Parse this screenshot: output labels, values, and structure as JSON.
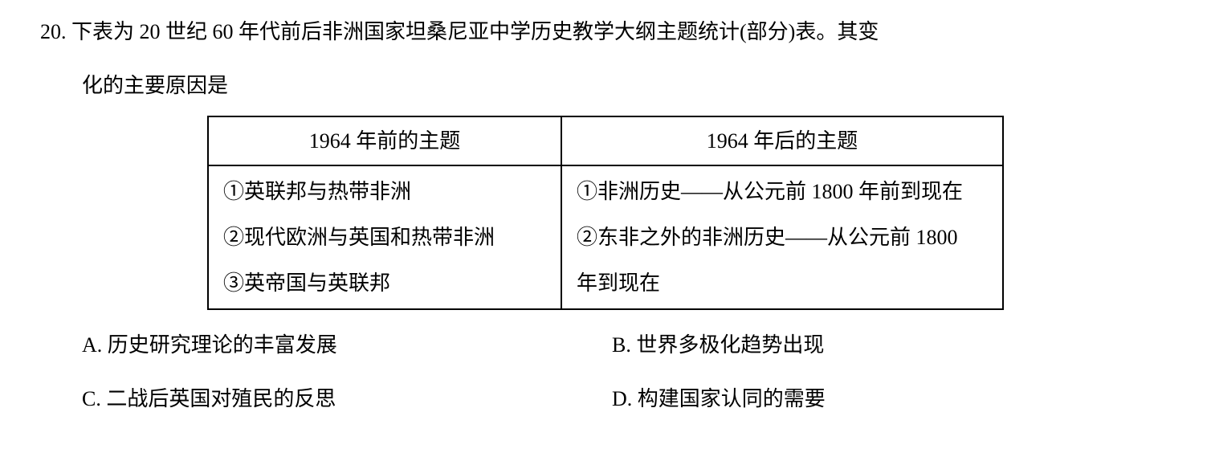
{
  "question": {
    "number": "20.",
    "line1": "下表为 20 世纪 60 年代前后非洲国家坦桑尼亚中学历史教学大纲主题统计(部分)表。其变",
    "line2": "化的主要原因是"
  },
  "table": {
    "header": {
      "col1": "1964 年前的主题",
      "col2": "1964 年后的主题"
    },
    "body": {
      "left": [
        "①英联邦与热带非洲",
        "②现代欧洲与英国和热带非洲",
        "③英帝国与英联邦"
      ],
      "right": [
        "①非洲历史——从公元前 1800 年前到现在",
        "②东非之外的非洲历史——从公元前 1800",
        "年到现在"
      ]
    }
  },
  "options": {
    "A": "A. 历史研究理论的丰富发展",
    "B": "B. 世界多极化趋势出现",
    "C": "C. 二战后英国对殖民的反思",
    "D": "D. 构建国家认同的需要"
  },
  "colors": {
    "text": "#000000",
    "background": "#ffffff",
    "border": "#000000"
  }
}
